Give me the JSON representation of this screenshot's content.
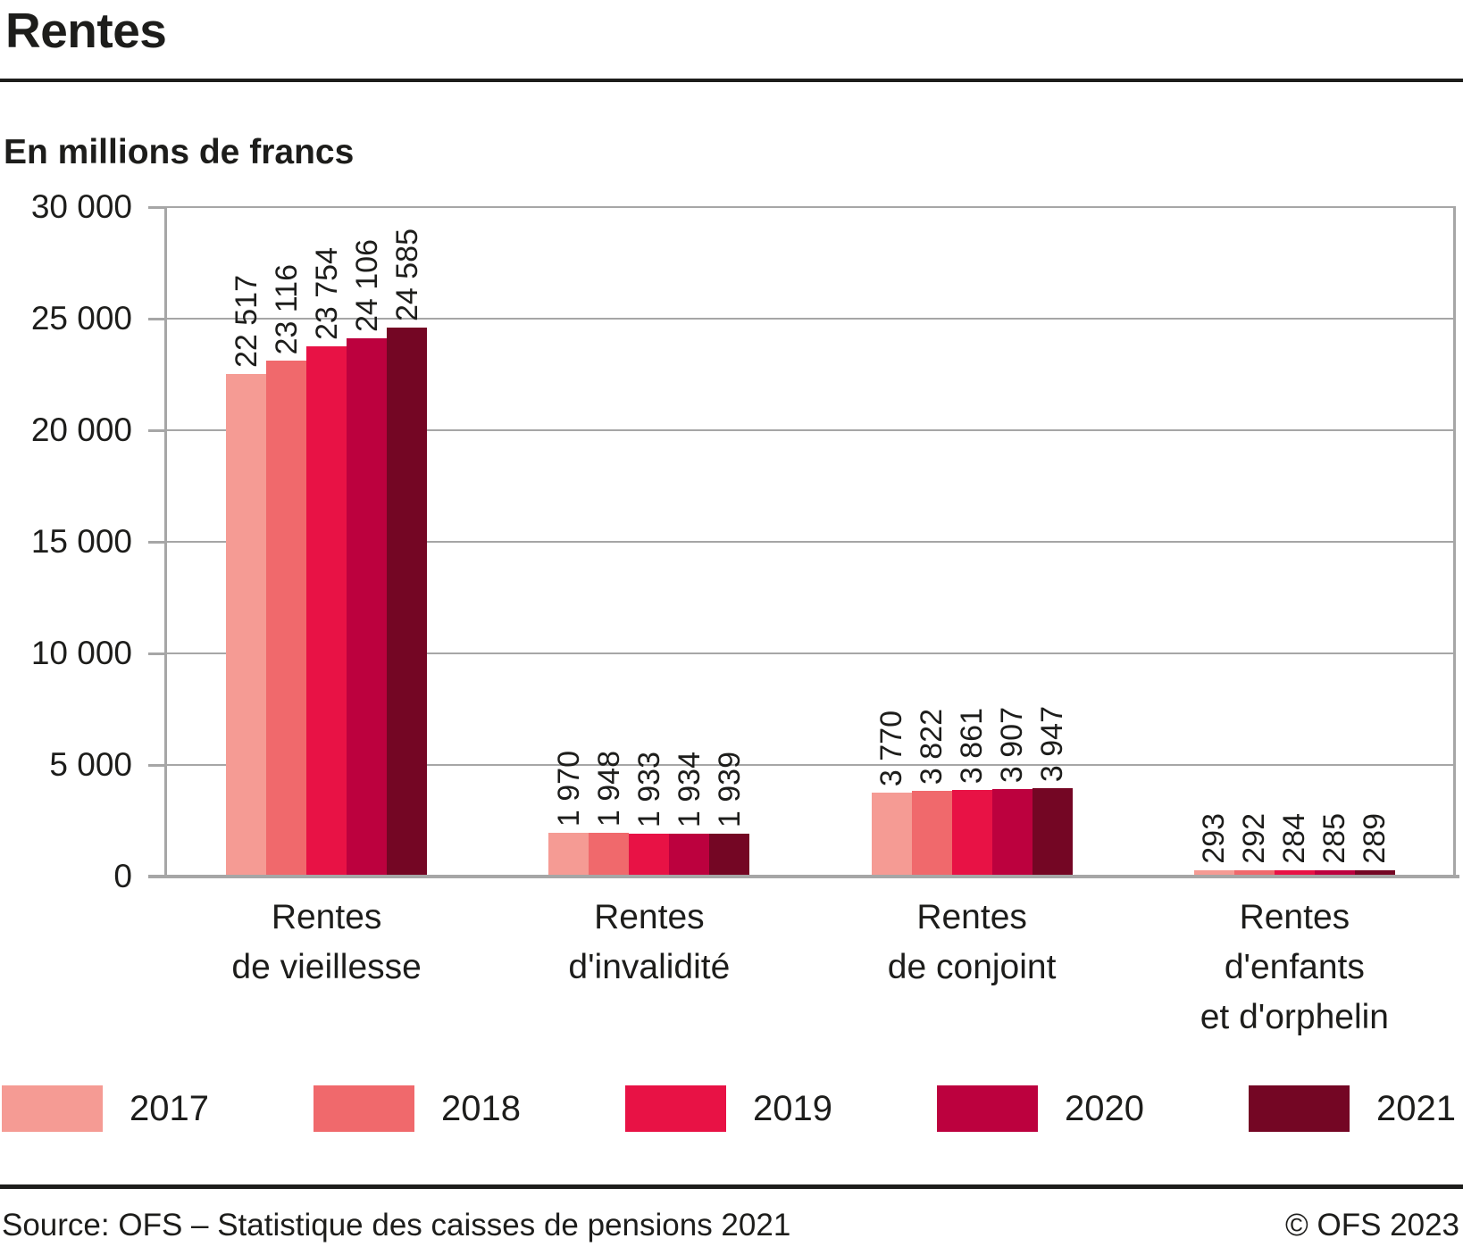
{
  "header": {
    "title": "Rentes",
    "subtitle": "En millions de francs"
  },
  "chart_data": {
    "type": "bar",
    "title": "Rentes",
    "unit": "En millions de francs",
    "categories": [
      {
        "id": "vieillesse",
        "lines": [
          "Rentes",
          "de vieillesse"
        ]
      },
      {
        "id": "invalidite",
        "lines": [
          "Rentes",
          "d'invalidité"
        ]
      },
      {
        "id": "conjoint",
        "lines": [
          "Rentes",
          "de conjoint"
        ]
      },
      {
        "id": "enfants",
        "lines": [
          "Rentes",
          "d'enfants",
          "et d'orphelin"
        ]
      }
    ],
    "series": [
      {
        "name": "2017",
        "color": "#F59B94",
        "values": [
          22517,
          1970,
          3770,
          293
        ],
        "value_labels": [
          "22 517",
          "1 970",
          "3 770",
          "293"
        ]
      },
      {
        "name": "2018",
        "color": "#F0696C",
        "values": [
          23116,
          1948,
          3822,
          292
        ],
        "value_labels": [
          "23 116",
          "1 948",
          "3 822",
          "292"
        ]
      },
      {
        "name": "2019",
        "color": "#E81245",
        "values": [
          23754,
          1933,
          3861,
          284
        ],
        "value_labels": [
          "23 754",
          "1 933",
          "3 861",
          "284"
        ]
      },
      {
        "name": "2020",
        "color": "#BC013E",
        "values": [
          24106,
          1934,
          3907,
          285
        ],
        "value_labels": [
          "24 106",
          "1 934",
          "3 907",
          "285"
        ]
      },
      {
        "name": "2021",
        "color": "#740624",
        "values": [
          24585,
          1939,
          3947,
          289
        ],
        "value_labels": [
          "24 585",
          "1 939",
          "3 947",
          "289"
        ]
      }
    ],
    "yticks": [
      {
        "value": 30000,
        "label": "30 000"
      },
      {
        "value": 25000,
        "label": "25 000"
      },
      {
        "value": 20000,
        "label": "20 000"
      },
      {
        "value": 15000,
        "label": "15 000"
      },
      {
        "value": 10000,
        "label": "10 000"
      },
      {
        "value": 5000,
        "label": "5 000"
      },
      {
        "value": 0,
        "label": "0"
      }
    ],
    "ylim": [
      0,
      30000
    ],
    "grid": true,
    "legend_position": "bottom",
    "line_color": "#a6a6a6"
  },
  "footer": {
    "source": "Source: OFS – Statistique des caisses de pensions 2021",
    "copyright": "© OFS 2023"
  }
}
